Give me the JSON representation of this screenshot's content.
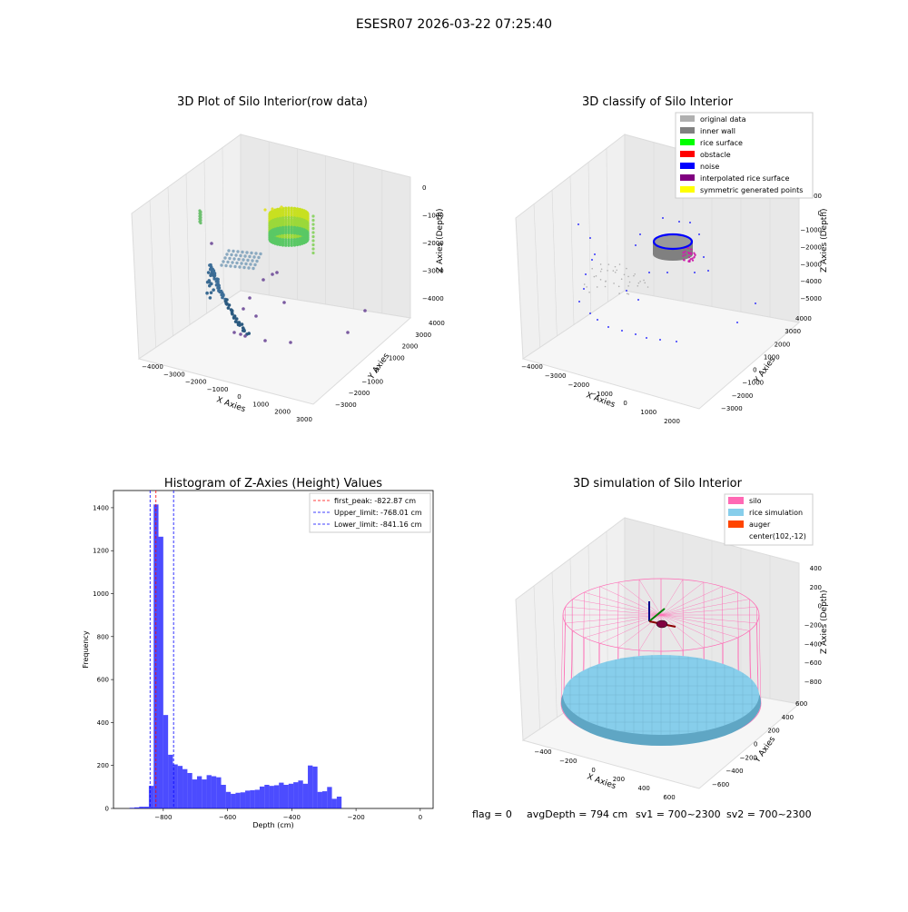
{
  "suptitle": "ESESR07 2026-03-22 07:25:40",
  "status_line": {
    "flag": "flag = 0",
    "avg_depth": "avgDepth = 794 cm",
    "sv1": "sv1 = 700~2300",
    "sv2": "sv2 = 700~2300"
  },
  "colors": {
    "original_data": "#b0b0b0",
    "inner_wall": "#808080",
    "rice_surface": "#00ff00",
    "obstacle": "#ff0000",
    "noise": "#0000ff",
    "interpolated_rice_surface": "#800080",
    "symmetric_generated_points": "#ffff00",
    "silo": "#ff69b4",
    "rice_simulation": "#87ceeb",
    "auger": "#ff4500",
    "histogram_bar": "#0000ff",
    "first_peak_line": "#ff0000",
    "limit_line": "#0000ff",
    "pane": "#f2f2f2",
    "grid": "#d9d9d9"
  },
  "chart_data": [
    {
      "type": "scatter",
      "chart_kind": "scatter-3d",
      "title": "3D Plot of Silo Interior(row data)",
      "xlabel": "X Axies",
      "ylabel": "Y Axies",
      "zlabel": "Z Axies (Depth)",
      "xlim": [
        -4500,
        3200
      ],
      "ylim": [
        -3700,
        4500
      ],
      "zlim": [
        -4600,
        300
      ],
      "x_ticks": [
        "−4000",
        "−3000",
        "−2000",
        "−1000",
        "0",
        "1000",
        "2000",
        "3000"
      ],
      "y_ticks": [
        "−3000",
        "−2000",
        "−1000",
        "0",
        "1000",
        "2000",
        "3000",
        "4000"
      ],
      "z_ticks": [
        "0",
        "−1000",
        "−2000",
        "−3000",
        "−4000"
      ],
      "colormap": "viridis",
      "grid": true,
      "point_clusters": [
        {
          "name": "rim ring",
          "center": [
            -100,
            2000,
            -700
          ],
          "radius": 300,
          "zspan": [
            -1000,
            -400
          ],
          "color": "#c8e020"
        },
        {
          "name": "left arc",
          "center": [
            -3500,
            0,
            -3800
          ],
          "span": [
            -4200,
            -3000
          ],
          "color": "#2a5a86"
        },
        {
          "name": "mid scatter",
          "center": [
            -1200,
            500,
            -2800
          ],
          "color": "#7a9fb8"
        },
        {
          "name": "far points",
          "center": [
            2500,
            -2000,
            -4000
          ],
          "color": "#5a3a8a"
        }
      ]
    },
    {
      "type": "scatter",
      "chart_kind": "scatter-3d",
      "title": "3D classify of Silo Interior",
      "xlabel": "X Axies",
      "ylabel": "Y Axies",
      "zlabel": "Z Axies (Depth)",
      "xlim": [
        -4500,
        2500
      ],
      "ylim": [
        -3500,
        4500
      ],
      "zlim": [
        -5500,
        1000
      ],
      "x_ticks": [
        "−4000",
        "−3000",
        "−2000",
        "−1000",
        "0",
        "1000",
        "2000"
      ],
      "y_ticks": [
        "−3000",
        "−2000",
        "−1000",
        "0",
        "1000",
        "2000",
        "3000",
        "4000"
      ],
      "z_ticks": [
        "1000",
        "0",
        "−1000",
        "−2000",
        "−3000",
        "−4000",
        "−5000"
      ],
      "legend_position": "top-right",
      "grid": true,
      "legend": [
        {
          "label": "original data",
          "color_key": "original_data"
        },
        {
          "label": "inner wall",
          "color_key": "inner_wall"
        },
        {
          "label": "rice surface",
          "color_key": "rice_surface"
        },
        {
          "label": "obstacle",
          "color_key": "obstacle"
        },
        {
          "label": "noise",
          "color_key": "noise"
        },
        {
          "label": "interpolated rice surface",
          "color_key": "interpolated_rice_surface"
        },
        {
          "label": "symmetric generated points",
          "color_key": "symmetric_generated_points"
        }
      ]
    },
    {
      "type": "bar",
      "chart_kind": "histogram",
      "title": "Histogram of Z-Axies (Height) Values",
      "xlabel": "Depth (cm)",
      "ylabel": "Frequency",
      "xlim": [
        -955,
        40
      ],
      "ylim": [
        0,
        1480
      ],
      "x_ticks": [
        -800,
        -600,
        -400,
        -200,
        0
      ],
      "x_tick_labels": [
        "−800",
        "−600",
        "−400",
        "−200",
        "0"
      ],
      "y_ticks": [
        0,
        200,
        400,
        600,
        800,
        1000,
        1200,
        1400
      ],
      "y_tick_labels": [
        "0",
        "200",
        "400",
        "600",
        "800",
        "1000",
        "1200",
        "1400"
      ],
      "bin_width": 15,
      "bins": [
        {
          "x0": -905,
          "x1": -890,
          "count": 3
        },
        {
          "x0": -890,
          "x1": -875,
          "count": 5
        },
        {
          "x0": -875,
          "x1": -860,
          "count": 8
        },
        {
          "x0": -860,
          "x1": -845,
          "count": 8
        },
        {
          "x0": -845,
          "x1": -830,
          "count": 105
        },
        {
          "x0": -830,
          "x1": -815,
          "count": 1415
        },
        {
          "x0": -815,
          "x1": -800,
          "count": 1265
        },
        {
          "x0": -800,
          "x1": -785,
          "count": 435
        },
        {
          "x0": -785,
          "x1": -770,
          "count": 250
        },
        {
          "x0": -770,
          "x1": -755,
          "count": 205
        },
        {
          "x0": -755,
          "x1": -740,
          "count": 198
        },
        {
          "x0": -740,
          "x1": -725,
          "count": 183
        },
        {
          "x0": -725,
          "x1": -710,
          "count": 165
        },
        {
          "x0": -710,
          "x1": -695,
          "count": 135
        },
        {
          "x0": -695,
          "x1": -680,
          "count": 150
        },
        {
          "x0": -680,
          "x1": -665,
          "count": 135
        },
        {
          "x0": -665,
          "x1": -650,
          "count": 155
        },
        {
          "x0": -650,
          "x1": -635,
          "count": 150
        },
        {
          "x0": -635,
          "x1": -620,
          "count": 145
        },
        {
          "x0": -620,
          "x1": -605,
          "count": 110
        },
        {
          "x0": -605,
          "x1": -590,
          "count": 77
        },
        {
          "x0": -590,
          "x1": -575,
          "count": 68
        },
        {
          "x0": -575,
          "x1": -560,
          "count": 73
        },
        {
          "x0": -560,
          "x1": -545,
          "count": 75
        },
        {
          "x0": -545,
          "x1": -530,
          "count": 83
        },
        {
          "x0": -530,
          "x1": -515,
          "count": 85
        },
        {
          "x0": -515,
          "x1": -500,
          "count": 87
        },
        {
          "x0": -500,
          "x1": -485,
          "count": 102
        },
        {
          "x0": -485,
          "x1": -470,
          "count": 110
        },
        {
          "x0": -470,
          "x1": -455,
          "count": 105
        },
        {
          "x0": -455,
          "x1": -440,
          "count": 108
        },
        {
          "x0": -440,
          "x1": -425,
          "count": 120
        },
        {
          "x0": -425,
          "x1": -410,
          "count": 110
        },
        {
          "x0": -410,
          "x1": -395,
          "count": 115
        },
        {
          "x0": -395,
          "x1": -380,
          "count": 122
        },
        {
          "x0": -380,
          "x1": -365,
          "count": 130
        },
        {
          "x0": -365,
          "x1": -350,
          "count": 115
        },
        {
          "x0": -350,
          "x1": -335,
          "count": 200
        },
        {
          "x0": -335,
          "x1": -320,
          "count": 195
        },
        {
          "x0": -320,
          "x1": -305,
          "count": 77
        },
        {
          "x0": -305,
          "x1": -290,
          "count": 80
        },
        {
          "x0": -290,
          "x1": -275,
          "count": 100
        },
        {
          "x0": -275,
          "x1": -260,
          "count": 45
        },
        {
          "x0": -260,
          "x1": -245,
          "count": 55
        }
      ],
      "vlines": [
        {
          "x": -822.87,
          "label": "first_peak: -822.87 cm",
          "color_key": "first_peak_line"
        },
        {
          "x": -768.01,
          "label": "Upper_limit: -768.01 cm",
          "color_key": "limit_line"
        },
        {
          "x": -841.16,
          "label": "Lower_limit: -841.16 cm",
          "color_key": "limit_line"
        }
      ],
      "legend_position": "top-right",
      "grid": false
    },
    {
      "type": "scatter",
      "chart_kind": "surface-3d",
      "title": "3D simulation of Silo Interior",
      "xlabel": "X Axies",
      "ylabel": "Y Axies",
      "zlabel": "Z Axies (Depth)",
      "xlim": [
        -550,
        750
      ],
      "ylim": [
        -750,
        700
      ],
      "zlim": [
        -950,
        500
      ],
      "x_ticks": [
        "−400",
        "−200",
        "0",
        "200",
        "400",
        "600"
      ],
      "y_ticks": [
        "−600",
        "−400",
        "−200",
        "0",
        "200",
        "400",
        "600"
      ],
      "z_ticks": [
        "400",
        "200",
        "0",
        "−200",
        "−400",
        "−600",
        "−800"
      ],
      "legend_position": "top-right",
      "grid": true,
      "legend": [
        {
          "label": "silo",
          "color_key": "silo",
          "swatch": true
        },
        {
          "label": "rice simulation",
          "color_key": "rice_simulation",
          "swatch": true
        },
        {
          "label": "auger",
          "color_key": "auger",
          "swatch": true
        },
        {
          "label": "center(102,-12)",
          "swatch": false
        }
      ],
      "silo": {
        "center_x": 102,
        "center_y": -12,
        "radius": 600,
        "top_z": 200,
        "bottom_z": -794
      },
      "rice_surface_depth": -794
    }
  ]
}
